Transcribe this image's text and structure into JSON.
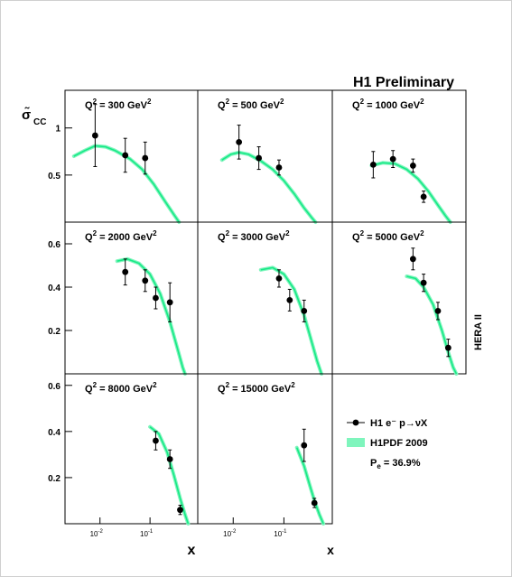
{
  "chart_data": {
    "type": "scatter",
    "title": "H1 Preliminary",
    "ylabel_main": "σ̃",
    "ylabel_sub": "CC",
    "xlabel": "x",
    "side_label": "HERA II",
    "x_scale": "log",
    "x_range": [
      0.002,
      0.9
    ],
    "x_tick_labels": [
      {
        "x": 0.01,
        "base": "10",
        "exp": "-2"
      },
      {
        "x": 0.1,
        "base": "10",
        "exp": "-1"
      }
    ],
    "x_tick_labels_col2": [
      {
        "x": 0.01,
        "base": "10",
        "exp": "-2"
      },
      {
        "x": 0.1,
        "base": "10",
        "exp": "-1"
      }
    ],
    "rows": [
      {
        "ylim": [
          0,
          1.4
        ],
        "ticks": [
          0.5,
          1
        ]
      },
      {
        "ylim": [
          0,
          0.7
        ],
        "ticks": [
          0.2,
          0.4,
          0.6
        ]
      },
      {
        "ylim": [
          0,
          0.65
        ],
        "ticks": [
          0.2,
          0.4,
          0.6
        ]
      }
    ],
    "panels": [
      {
        "label_prefix": "Q",
        "label_exp": "2",
        "label_value": " = 300 GeV",
        "label_unit_exp": "2",
        "points": [
          {
            "x": 0.008,
            "y": 0.92,
            "err": 0.33
          },
          {
            "x": 0.032,
            "y": 0.71,
            "err": 0.18
          },
          {
            "x": 0.08,
            "y": 0.68,
            "err": 0.17
          }
        ],
        "curve": [
          [
            0.003,
            0.7
          ],
          [
            0.005,
            0.76
          ],
          [
            0.008,
            0.81
          ],
          [
            0.013,
            0.8
          ],
          [
            0.02,
            0.76
          ],
          [
            0.04,
            0.67
          ],
          [
            0.07,
            0.56
          ],
          [
            0.12,
            0.4
          ],
          [
            0.2,
            0.22
          ],
          [
            0.3,
            0.08
          ],
          [
            0.38,
            0.0
          ]
        ]
      },
      {
        "label_prefix": "Q",
        "label_exp": "2",
        "label_value": " = 500 GeV",
        "label_unit_exp": "2",
        "points": [
          {
            "x": 0.013,
            "y": 0.85,
            "err": 0.18
          },
          {
            "x": 0.032,
            "y": 0.68,
            "err": 0.12
          },
          {
            "x": 0.08,
            "y": 0.58,
            "err": 0.08
          }
        ],
        "curve": [
          [
            0.006,
            0.66
          ],
          [
            0.009,
            0.72
          ],
          [
            0.013,
            0.74
          ],
          [
            0.02,
            0.72
          ],
          [
            0.035,
            0.65
          ],
          [
            0.06,
            0.56
          ],
          [
            0.1,
            0.44
          ],
          [
            0.16,
            0.3
          ],
          [
            0.25,
            0.15
          ],
          [
            0.35,
            0.05
          ],
          [
            0.42,
            0.0
          ]
        ]
      },
      {
        "label_prefix": "Q",
        "label_exp": "2",
        "label_value": " = 1000 GeV",
        "label_unit_exp": "2",
        "points": [
          {
            "x": 0.013,
            "y": 0.61,
            "err": 0.14
          },
          {
            "x": 0.032,
            "y": 0.67,
            "err": 0.09
          },
          {
            "x": 0.08,
            "y": 0.6,
            "err": 0.07
          },
          {
            "x": 0.13,
            "y": 0.27,
            "err": 0.06
          }
        ],
        "curve": [
          [
            0.012,
            0.6
          ],
          [
            0.02,
            0.63
          ],
          [
            0.035,
            0.62
          ],
          [
            0.06,
            0.56
          ],
          [
            0.1,
            0.46
          ],
          [
            0.16,
            0.33
          ],
          [
            0.25,
            0.18
          ],
          [
            0.35,
            0.07
          ],
          [
            0.44,
            0.0
          ]
        ]
      },
      {
        "label_prefix": "Q",
        "label_exp": "2",
        "label_value": " = 2000 GeV",
        "label_unit_exp": "2",
        "points": [
          {
            "x": 0.032,
            "y": 0.47,
            "err": 0.06
          },
          {
            "x": 0.08,
            "y": 0.43,
            "err": 0.05
          },
          {
            "x": 0.13,
            "y": 0.35,
            "err": 0.05
          },
          {
            "x": 0.25,
            "y": 0.33,
            "err": 0.09
          }
        ],
        "curve": [
          [
            0.022,
            0.52
          ],
          [
            0.035,
            0.53
          ],
          [
            0.06,
            0.51
          ],
          [
            0.1,
            0.46
          ],
          [
            0.16,
            0.37
          ],
          [
            0.25,
            0.24
          ],
          [
            0.35,
            0.12
          ],
          [
            0.45,
            0.03
          ],
          [
            0.5,
            0.0
          ]
        ]
      },
      {
        "label_prefix": "Q",
        "label_exp": "2",
        "label_value": " = 3000 GeV",
        "label_unit_exp": "2",
        "points": [
          {
            "x": 0.08,
            "y": 0.44,
            "err": 0.04
          },
          {
            "x": 0.13,
            "y": 0.34,
            "err": 0.05
          },
          {
            "x": 0.25,
            "y": 0.29,
            "err": 0.05
          }
        ],
        "curve": [
          [
            0.035,
            0.48
          ],
          [
            0.06,
            0.49
          ],
          [
            0.1,
            0.46
          ],
          [
            0.16,
            0.39
          ],
          [
            0.25,
            0.27
          ],
          [
            0.35,
            0.15
          ],
          [
            0.45,
            0.06
          ],
          [
            0.55,
            0.0
          ]
        ]
      },
      {
        "label_prefix": "Q",
        "label_exp": "2",
        "label_value": " = 5000 GeV",
        "label_unit_exp": "2",
        "points": [
          {
            "x": 0.08,
            "y": 0.53,
            "err": 0.05
          },
          {
            "x": 0.13,
            "y": 0.42,
            "err": 0.04
          },
          {
            "x": 0.25,
            "y": 0.29,
            "err": 0.04
          },
          {
            "x": 0.4,
            "y": 0.12,
            "err": 0.04
          }
        ],
        "curve": [
          [
            0.06,
            0.45
          ],
          [
            0.09,
            0.44
          ],
          [
            0.13,
            0.4
          ],
          [
            0.2,
            0.32
          ],
          [
            0.3,
            0.2
          ],
          [
            0.4,
            0.1
          ],
          [
            0.5,
            0.03
          ],
          [
            0.58,
            0.0
          ]
        ]
      },
      {
        "label_prefix": "Q",
        "label_exp": "2",
        "label_value": " = 8000 GeV",
        "label_unit_exp": "2",
        "points": [
          {
            "x": 0.13,
            "y": 0.36,
            "err": 0.04
          },
          {
            "x": 0.25,
            "y": 0.28,
            "err": 0.04
          },
          {
            "x": 0.4,
            "y": 0.06,
            "err": 0.02
          }
        ],
        "curve": [
          [
            0.1,
            0.42
          ],
          [
            0.15,
            0.39
          ],
          [
            0.22,
            0.31
          ],
          [
            0.3,
            0.21
          ],
          [
            0.4,
            0.11
          ],
          [
            0.5,
            0.04
          ],
          [
            0.58,
            0.0
          ]
        ]
      },
      {
        "label_prefix": "Q",
        "label_exp": "2",
        "label_value": " = 15000 GeV",
        "label_unit_exp": "2",
        "points": [
          {
            "x": 0.25,
            "y": 0.34,
            "err": 0.07
          },
          {
            "x": 0.4,
            "y": 0.09,
            "err": 0.02
          }
        ],
        "curve": [
          [
            0.18,
            0.33
          ],
          [
            0.25,
            0.25
          ],
          [
            0.32,
            0.17
          ],
          [
            0.4,
            0.1
          ],
          [
            0.5,
            0.04
          ],
          [
            0.6,
            0.0
          ]
        ]
      }
    ],
    "legend": {
      "data_label": "H1 e⁻ p→νX",
      "band_label": "H1PDF 2009",
      "pol_label": "P",
      "pol_sub": "e",
      "pol_value": " = 36.9%"
    },
    "colors": {
      "band": "#17e986",
      "band_fill": "#7ff5bd",
      "data": "#000000"
    }
  }
}
